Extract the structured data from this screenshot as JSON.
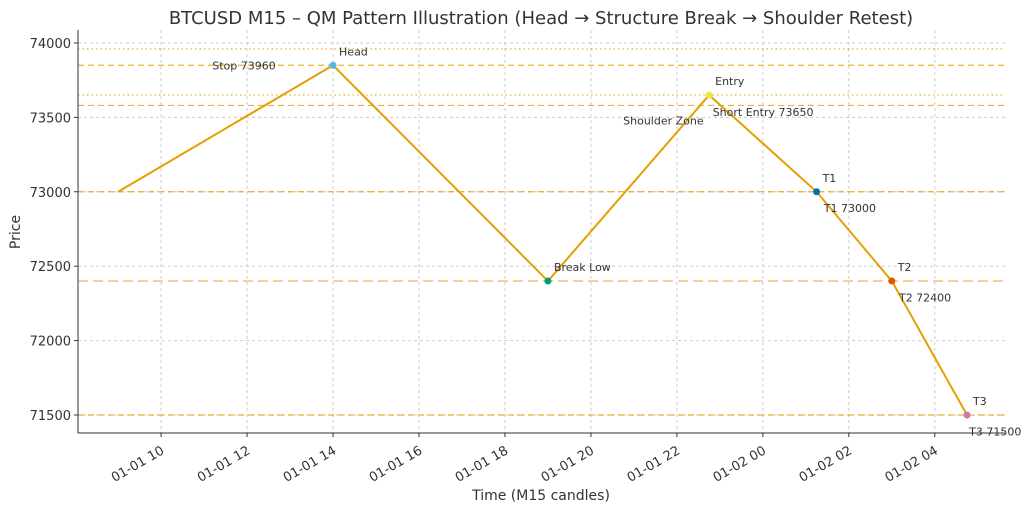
{
  "chart_data": {
    "type": "line",
    "title": "BTCUSD M15 – QM Pattern Illustration (Head → Structure Break → Shoulder Retest)",
    "xlabel": "Time (M15 candles)",
    "ylabel": "Price",
    "xlim": [
      "2024-01-01T08:04",
      "2024-01-02T05:38"
    ],
    "ylim": [
      71379,
      74087
    ],
    "grid": true,
    "x_ticks": [
      {
        "t": "2024-01-01T10:00",
        "label": "01-01 10"
      },
      {
        "t": "2024-01-01T12:00",
        "label": "01-01 12"
      },
      {
        "t": "2024-01-01T14:00",
        "label": "01-01 14"
      },
      {
        "t": "2024-01-01T16:00",
        "label": "01-01 16"
      },
      {
        "t": "2024-01-01T18:00",
        "label": "01-01 18"
      },
      {
        "t": "2024-01-01T20:00",
        "label": "01-01 20"
      },
      {
        "t": "2024-01-01T22:00",
        "label": "01-01 22"
      },
      {
        "t": "2024-01-02T00:00",
        "label": "01-02 00"
      },
      {
        "t": "2024-01-02T02:00",
        "label": "01-02 02"
      },
      {
        "t": "2024-01-02T04:00",
        "label": "01-02 04"
      }
    ],
    "y_ticks": [
      71500,
      72000,
      72500,
      73000,
      73500,
      74000
    ],
    "series": [
      {
        "color": "#E69F00",
        "x": [
          "2024-01-01T09:00",
          "2024-01-01T14:00",
          "2024-01-01T19:00",
          "2024-01-01T22:45",
          "2024-01-02T01:15",
          "2024-01-02T03:00",
          "2024-01-02T04:45"
        ],
        "y": [
          73000,
          73850,
          72400,
          73650,
          73000,
          72400,
          71500
        ]
      }
    ],
    "points": [
      {
        "label": "Head",
        "x": "2024-01-01T14:00",
        "y": 73850,
        "color": "#56B4E9"
      },
      {
        "label": "Break Low",
        "x": "2024-01-01T19:00",
        "y": 72400,
        "color": "#009E73"
      },
      {
        "label": "Entry",
        "x": "2024-01-01T22:45",
        "y": 73650,
        "color": "#F0E442"
      },
      {
        "label": "T1",
        "x": "2024-01-02T01:15",
        "y": 73000,
        "color": "#0072B2"
      },
      {
        "label": "T2",
        "x": "2024-01-02T03:00",
        "y": 72400,
        "color": "#D55E00"
      },
      {
        "label": "T3",
        "x": "2024-01-02T04:45",
        "y": 71500,
        "color": "#CC79A7"
      }
    ],
    "hlines": [
      {
        "y": 73960,
        "style": "dotted"
      },
      {
        "y": 73850,
        "style": "dashed"
      },
      {
        "y": 73650,
        "style": "dotted"
      },
      {
        "y": 73580,
        "style": "dashed"
      },
      {
        "y": 73000,
        "style": "dashed"
      },
      {
        "y": 72400,
        "style": "longdash"
      },
      {
        "y": 71500,
        "style": "dashed"
      }
    ],
    "annotations": [
      {
        "text": "Stop 73960",
        "x": "2024-01-01T12:40",
        "y": 73850
      },
      {
        "text": "Shoulder Zone",
        "x": "2024-01-01T20:45",
        "y": 73480
      },
      {
        "text": "Short Entry 73650",
        "x": "2024-01-01T22:50",
        "y": 73535
      },
      {
        "text": "T1 73000",
        "x": "2024-01-02T01:25",
        "y": 72890
      },
      {
        "text": "T2 72400",
        "x": "2024-01-02T03:10",
        "y": 72290
      },
      {
        "text": "T3 71500",
        "x": "2024-01-02T04:48",
        "y": 71390
      }
    ]
  }
}
